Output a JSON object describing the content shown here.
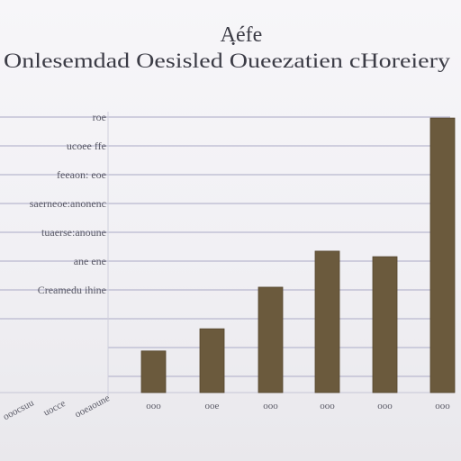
{
  "colors": {
    "bar": "#6b5a3d",
    "bar_edge": "#54452d",
    "grid": "#b9b8cf",
    "text": "#3c3c46"
  },
  "chart_data": {
    "type": "bar",
    "title": "Aฺéfe",
    "subtitle": "Onlesemdad Oesisled Oueezatien cHoreiery",
    "xlabel": "",
    "ylabel": "",
    "y_tick_labels": [
      "Creamedu ihine",
      "ane ene",
      "tuaerse:anoune",
      "saerneoe:anonenc",
      "feeaon: eoe",
      "ucoee ffe",
      "roe"
    ],
    "x_left_labels": [
      "ooocsuu",
      "uocce",
      "ooeaoune"
    ],
    "categories": [
      "ooo",
      "ooe",
      "ooo",
      "ooo",
      "ooo",
      "ooo"
    ],
    "values": [
      1.5,
      2.3,
      3.8,
      5.1,
      4.9,
      9.9
    ],
    "ylim": [
      0,
      10
    ],
    "grid": true,
    "legend": "none"
  }
}
